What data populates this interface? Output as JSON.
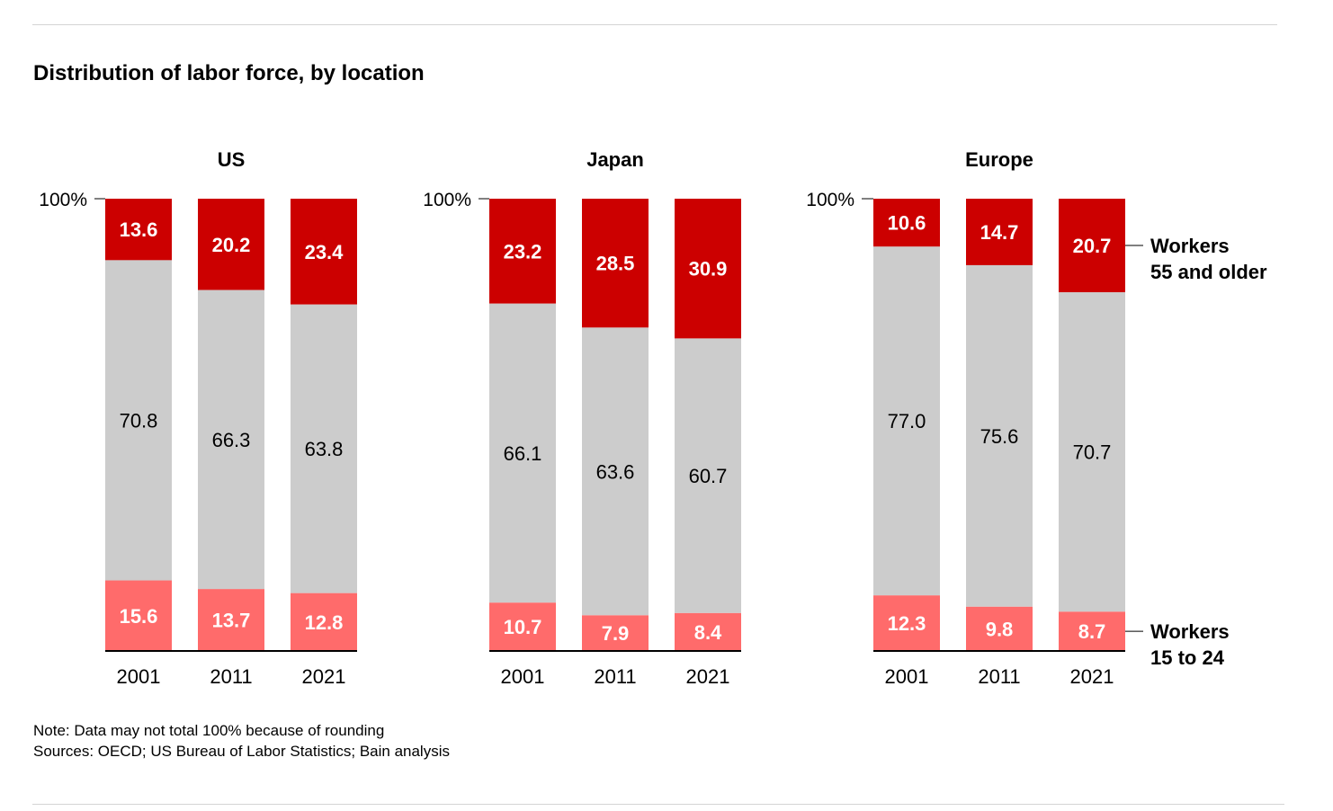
{
  "title": "Distribution of labor force, by location",
  "notes": {
    "note": "Note: Data may not total 100% because of rounding",
    "sources": "Sources: OECD; US Bureau of Labor Statistics; Bain analysis"
  },
  "colors": {
    "older": "#cc0000",
    "middle": "#cccccc",
    "younger": "#ff6b6b"
  },
  "chart_data": {
    "type": "bar",
    "stacked": true,
    "y_axis_label": "100%",
    "ylim": [
      0,
      100
    ],
    "categories": [
      "2001",
      "2011",
      "2021"
    ],
    "legend": {
      "older": [
        "Workers",
        "55 and older"
      ],
      "younger": [
        "Workers",
        "15 to 24"
      ]
    },
    "panels": [
      {
        "name": "US",
        "younger": [
          15.6,
          13.7,
          12.8
        ],
        "middle": [
          70.8,
          66.3,
          63.8
        ],
        "older": [
          13.6,
          20.2,
          23.4
        ]
      },
      {
        "name": "Japan",
        "younger": [
          10.7,
          7.9,
          8.4
        ],
        "middle": [
          66.1,
          63.6,
          60.7
        ],
        "older": [
          23.2,
          28.5,
          30.9
        ]
      },
      {
        "name": "Europe",
        "younger": [
          12.3,
          9.8,
          8.7
        ],
        "middle": [
          77.0,
          75.6,
          70.7
        ],
        "older": [
          10.6,
          14.7,
          20.7
        ]
      }
    ]
  }
}
